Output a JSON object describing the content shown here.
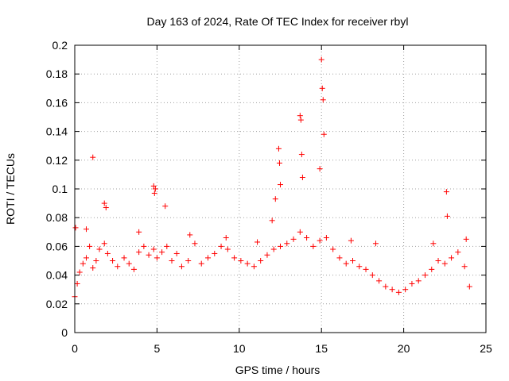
{
  "chart_data": {
    "type": "scatter",
    "title": "Day 163 of 2024, Rate Of TEC Index for receiver rbyl",
    "xlabel": "GPS time / hours",
    "ylabel": "ROTI / TECUs",
    "xlim": [
      0,
      25
    ],
    "ylim": [
      0,
      0.2
    ],
    "x_ticks": [
      0,
      5,
      10,
      15,
      20,
      25
    ],
    "y_ticks": [
      0,
      0.02,
      0.04,
      0.06,
      0.08,
      0.1,
      0.12,
      0.14,
      0.16,
      0.18,
      0.2
    ],
    "x_tick_labels": [
      "0",
      "5",
      "10",
      "15",
      "20",
      "25"
    ],
    "y_tick_labels": [
      "0",
      "0.02",
      "0.04",
      "0.06",
      "0.08",
      "0.1",
      "0.12",
      "0.14",
      "0.16",
      "0.18",
      "0.2"
    ],
    "grid": true,
    "marker": "+",
    "color": "#ff0000",
    "series": [
      {
        "name": "ROTI",
        "x": [
          0.0,
          0.15,
          0.3,
          0.5,
          0.7,
          0.9,
          1.1,
          1.3,
          1.5,
          1.8,
          2.0,
          2.3,
          2.6,
          3.0,
          3.3,
          3.6,
          3.9,
          4.2,
          4.5,
          4.8,
          5.0,
          5.3,
          5.6,
          5.9,
          6.2,
          6.5,
          6.9,
          7.3,
          7.7,
          8.1,
          8.5,
          8.9,
          9.3,
          9.7,
          10.1,
          10.5,
          10.9,
          11.3,
          11.7,
          12.1,
          12.5,
          12.9,
          13.3,
          13.7,
          14.1,
          14.5,
          14.9,
          15.3,
          15.7,
          16.1,
          16.5,
          16.9,
          17.3,
          17.7,
          18.1,
          18.5,
          18.9,
          19.3,
          19.7,
          20.1,
          20.5,
          20.9,
          21.3,
          21.7,
          22.1,
          22.5,
          22.9,
          23.3,
          23.7,
          24.0,
          1.1,
          1.8,
          1.9,
          4.8,
          4.85,
          4.9,
          5.5,
          12.0,
          12.2,
          12.4,
          12.45,
          12.5,
          13.7,
          13.75,
          13.8,
          13.85,
          14.9,
          15.0,
          15.05,
          15.1,
          15.15,
          22.6,
          22.65,
          23.8,
          0.05,
          0.7,
          3.9,
          7.0,
          9.2,
          11.1,
          16.8,
          18.3,
          21.8
        ],
        "y": [
          0.025,
          0.034,
          0.042,
          0.048,
          0.052,
          0.06,
          0.045,
          0.05,
          0.058,
          0.062,
          0.055,
          0.05,
          0.046,
          0.052,
          0.048,
          0.044,
          0.056,
          0.06,
          0.054,
          0.058,
          0.052,
          0.056,
          0.06,
          0.05,
          0.055,
          0.046,
          0.05,
          0.062,
          0.048,
          0.052,
          0.055,
          0.06,
          0.058,
          0.052,
          0.05,
          0.048,
          0.046,
          0.05,
          0.054,
          0.058,
          0.06,
          0.062,
          0.065,
          0.07,
          0.066,
          0.06,
          0.064,
          0.066,
          0.058,
          0.052,
          0.048,
          0.05,
          0.046,
          0.044,
          0.04,
          0.036,
          0.032,
          0.03,
          0.028,
          0.03,
          0.034,
          0.036,
          0.04,
          0.044,
          0.05,
          0.048,
          0.052,
          0.056,
          0.046,
          0.032,
          0.122,
          0.09,
          0.087,
          0.102,
          0.097,
          0.1,
          0.088,
          0.078,
          0.093,
          0.128,
          0.118,
          0.103,
          0.151,
          0.148,
          0.124,
          0.108,
          0.114,
          0.19,
          0.17,
          0.162,
          0.138,
          0.098,
          0.081,
          0.065,
          0.073,
          0.072,
          0.07,
          0.068,
          0.066,
          0.063,
          0.064,
          0.062,
          0.062
        ]
      }
    ]
  }
}
